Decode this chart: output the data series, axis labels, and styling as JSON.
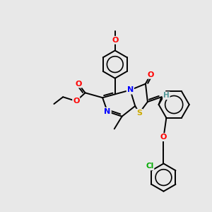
{
  "bg_color": "#e8e8e8",
  "bond_color": "#000000",
  "figsize": [
    3.0,
    3.0
  ],
  "dpi": 100,
  "lw": 1.4,
  "atom_colors": {
    "N": "#0000ff",
    "O": "#ff0000",
    "S": "#ccaa00",
    "Cl": "#00aa00",
    "H": "#559999",
    "C": "#000000"
  }
}
